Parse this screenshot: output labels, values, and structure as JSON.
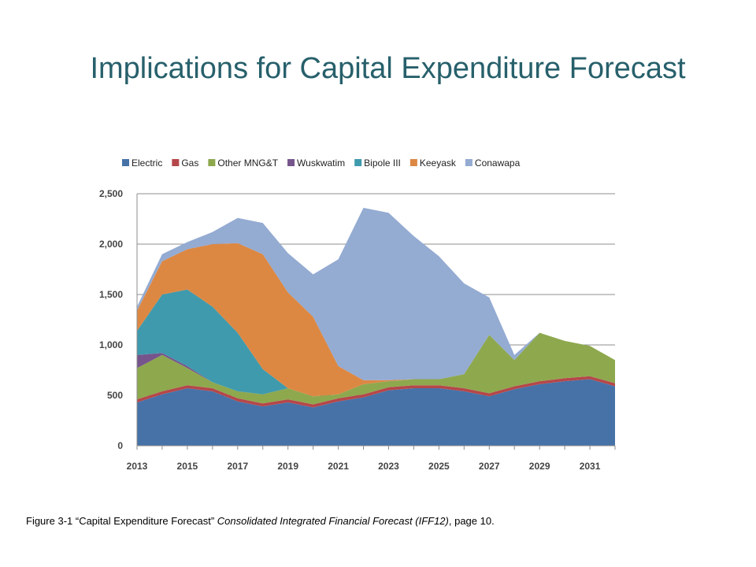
{
  "slide": {
    "title": "Implications for Capital Expenditure Forecast"
  },
  "caption": {
    "prefix": "Figure 3-1 “Capital Expenditure Forecast” ",
    "italic": "Consolidated Integrated Financial Forecast (IFF12)",
    "suffix": ", page 10."
  },
  "chart_data": {
    "type": "area",
    "stacked": true,
    "x": [
      2013,
      2014,
      2015,
      2016,
      2017,
      2018,
      2019,
      2020,
      2021,
      2022,
      2023,
      2024,
      2025,
      2026,
      2027,
      2028,
      2029,
      2030,
      2031,
      2032
    ],
    "x_tick_labels": [
      "2013",
      "2015",
      "2017",
      "2019",
      "2021",
      "2023",
      "2025",
      "2027",
      "2029",
      "2031"
    ],
    "y_tick_labels": [
      "0",
      "500",
      "1,000",
      "1,500",
      "2,000",
      "2,500"
    ],
    "ylim": [
      0,
      2500
    ],
    "grid": true,
    "legend_position": "top",
    "series": [
      {
        "name": "Electric",
        "color": "#4672a8",
        "values": [
          430,
          510,
          570,
          540,
          440,
          390,
          430,
          380,
          440,
          480,
          550,
          570,
          570,
          540,
          490,
          560,
          610,
          640,
          660,
          590
        ]
      },
      {
        "name": "Gas",
        "color": "#b5474a",
        "values": [
          30,
          30,
          30,
          30,
          30,
          30,
          30,
          30,
          30,
          30,
          30,
          30,
          30,
          30,
          30,
          30,
          30,
          30,
          30,
          30
        ]
      },
      {
        "name": "Other MNG&T",
        "color": "#8ea84e",
        "values": [
          310,
          360,
          170,
          60,
          70,
          90,
          110,
          80,
          40,
          100,
          60,
          60,
          60,
          140,
          580,
          260,
          480,
          370,
          300,
          230
        ]
      },
      {
        "name": "Wuskwatim",
        "color": "#76558c",
        "values": [
          130,
          20,
          20,
          0,
          0,
          0,
          0,
          0,
          0,
          0,
          0,
          0,
          0,
          0,
          0,
          0,
          0,
          0,
          0,
          0
        ]
      },
      {
        "name": "Bipole III",
        "color": "#3f9aad",
        "values": [
          240,
          580,
          760,
          750,
          580,
          250,
          0,
          0,
          0,
          0,
          0,
          0,
          0,
          0,
          0,
          0,
          0,
          0,
          0,
          0
        ]
      },
      {
        "name": "Keeyask",
        "color": "#dc8843",
        "values": [
          200,
          330,
          400,
          620,
          890,
          1140,
          950,
          790,
          280,
          40,
          10,
          0,
          0,
          0,
          0,
          0,
          0,
          0,
          0,
          0
        ]
      },
      {
        "name": "Conawapa",
        "color": "#94abd2",
        "values": [
          40,
          70,
          70,
          120,
          250,
          310,
          390,
          420,
          1060,
          1710,
          1660,
          1420,
          1220,
          900,
          370,
          50,
          0,
          0,
          0,
          0
        ]
      }
    ]
  }
}
